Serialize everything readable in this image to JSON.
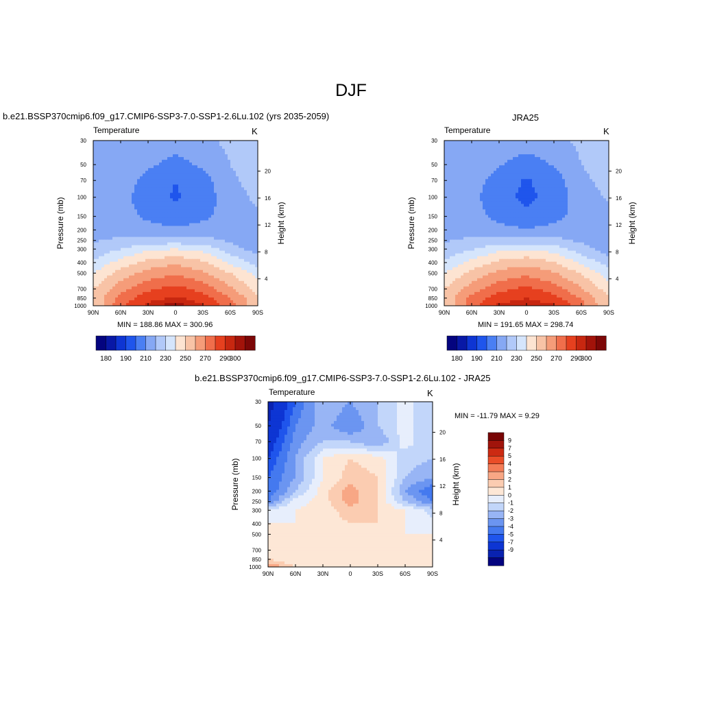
{
  "page": {
    "title": "DJF"
  },
  "panels": {
    "model": {
      "header": "b.e21.BSSP370cmip6.f09_g17.CMIP6-SSP3-7.0-SSP1-2.6Lu.102 (yrs 2035-2059)",
      "left_label": "Temperature",
      "right_label": "K",
      "stats": "MIN = 188.86  MAX = 300.96"
    },
    "obs": {
      "header": "JRA25",
      "left_label": "Temperature",
      "right_label": "K",
      "stats": "MIN = 191.65  MAX = 298.74"
    },
    "diff": {
      "header": "b.e21.BSSP370cmip6.f09_g17.CMIP6-SSP3-7.0-SSP1-2.6Lu.102 - JRA25",
      "left_label": "Temperature",
      "right_label": "K",
      "stats": "MIN = -11.79  MAX =   9.29"
    }
  },
  "colors": {
    "temp_scale": [
      "#04047f",
      "#0818a6",
      "#0e35d3",
      "#1f55ec",
      "#4a7ff3",
      "#86a8f4",
      "#b1c9f9",
      "#d5e5fc",
      "#fde4d2",
      "#f8c3a6",
      "#f59c79",
      "#f06e4b",
      "#e6401f",
      "#c72710",
      "#a2130a",
      "#7c0707"
    ],
    "diff_scale": [
      "#04047f",
      "#0922b0",
      "#0d35d3",
      "#1f55ec",
      "#4479ef",
      "#6b95f1",
      "#98b5f5",
      "#c2d6fa",
      "#e7eefc",
      "#fde7d6",
      "#fbccb1",
      "#f8a785",
      "#f47c57",
      "#ea4d28",
      "#cc2a12",
      "#a0140b",
      "#780505"
    ]
  },
  "chart_data": [
    {
      "type": "heatmap",
      "name": "model",
      "title": "b.e21.BSSP370cmip6.f09_g17.CMIP6-SSP3-7.0-SSP1-2.6Lu.102 (yrs 2035-2059)",
      "variable": "Temperature",
      "units": "K",
      "ylabel": "Pressure (mb)",
      "ylabel_right": "Height (km)",
      "x_tick_labels": [
        "90N",
        "60N",
        "30N",
        "0",
        "30S",
        "60S",
        "90S"
      ],
      "y_tick_labels": [
        "30",
        "50",
        "70",
        "100",
        "150",
        "200",
        "250",
        "300",
        "400",
        "500",
        "700",
        "850",
        "1000"
      ],
      "y_ticks": [
        30,
        50,
        70,
        100,
        150,
        200,
        250,
        300,
        400,
        500,
        700,
        850,
        1000
      ],
      "height_tick_labels": [
        "4",
        "8",
        "12",
        "16",
        "20"
      ],
      "height_ticks": [
        4,
        8,
        12,
        16,
        20
      ],
      "ylim": [
        1000,
        30
      ],
      "xlim": [
        90,
        -90
      ],
      "colorbar_labels": [
        "180",
        "190",
        "210",
        "230",
        "250",
        "270",
        "290",
        "300"
      ],
      "colorbar_levels": [
        180,
        185,
        190,
        200,
        210,
        220,
        230,
        240,
        250,
        260,
        270,
        280,
        290,
        295,
        300
      ],
      "min": 188.86,
      "max": 300.96,
      "profile_lat": [
        90,
        60,
        30,
        0,
        -30,
        -60,
        -90
      ],
      "profile_p": [
        30,
        50,
        70,
        100,
        150,
        200,
        250,
        300,
        400,
        500,
        700,
        850,
        1000
      ],
      "values": [
        [
          214,
          220,
          218,
          216,
          218,
          222,
          228
        ],
        [
          212,
          218,
          212,
          206,
          212,
          220,
          226
        ],
        [
          210,
          216,
          206,
          200,
          206,
          218,
          224
        ],
        [
          210,
          214,
          204,
          199,
          204,
          216,
          222
        ],
        [
          212,
          214,
          208,
          203,
          208,
          214,
          218
        ],
        [
          215,
          216,
          214,
          212,
          214,
          214,
          216
        ],
        [
          219,
          222,
          224,
          224,
          224,
          218,
          214
        ],
        [
          222,
          230,
          238,
          240,
          237,
          224,
          216
        ],
        [
          232,
          244,
          254,
          258,
          252,
          238,
          226
        ],
        [
          240,
          254,
          264,
          268,
          262,
          250,
          236
        ],
        [
          250,
          266,
          278,
          284,
          276,
          262,
          246
        ],
        [
          252,
          274,
          286,
          292,
          285,
          270,
          252
        ],
        [
          250,
          278,
          293,
          298,
          292,
          275,
          250
        ]
      ]
    },
    {
      "type": "heatmap",
      "name": "obs",
      "title": "JRA25",
      "variable": "Temperature",
      "units": "K",
      "ylabel": "Pressure (mb)",
      "ylabel_right": "Height (km)",
      "x_tick_labels": [
        "90N",
        "60N",
        "30N",
        "0",
        "30S",
        "60S",
        "90S"
      ],
      "y_tick_labels": [
        "30",
        "50",
        "70",
        "100",
        "150",
        "200",
        "250",
        "300",
        "400",
        "500",
        "700",
        "850",
        "1000"
      ],
      "y_ticks": [
        30,
        50,
        70,
        100,
        150,
        200,
        250,
        300,
        400,
        500,
        700,
        850,
        1000
      ],
      "height_tick_labels": [
        "4",
        "8",
        "12",
        "16",
        "20"
      ],
      "height_ticks": [
        4,
        8,
        12,
        16,
        20
      ],
      "ylim": [
        1000,
        30
      ],
      "xlim": [
        90,
        -90
      ],
      "colorbar_labels": [
        "180",
        "190",
        "210",
        "230",
        "250",
        "270",
        "290",
        "300"
      ],
      "colorbar_levels": [
        180,
        185,
        190,
        200,
        210,
        220,
        230,
        240,
        250,
        260,
        270,
        280,
        290,
        295,
        300
      ],
      "min": 191.65,
      "max": 298.74,
      "profile_lat": [
        90,
        60,
        30,
        0,
        -30,
        -60,
        -90
      ],
      "profile_p": [
        30,
        50,
        70,
        100,
        150,
        200,
        250,
        300,
        400,
        500,
        700,
        850,
        1000
      ],
      "values": [
        [
          214,
          219,
          217,
          215,
          217,
          222,
          227
        ],
        [
          212,
          217,
          211,
          205,
          211,
          220,
          225
        ],
        [
          210,
          215,
          205,
          199,
          205,
          218,
          223
        ],
        [
          210,
          213,
          203,
          198,
          203,
          216,
          221
        ],
        [
          212,
          214,
          207,
          202,
          207,
          214,
          218
        ],
        [
          215,
          216,
          213,
          211,
          213,
          214,
          216
        ],
        [
          219,
          222,
          223,
          223,
          223,
          218,
          213
        ],
        [
          222,
          229,
          237,
          239,
          236,
          224,
          215
        ],
        [
          232,
          243,
          253,
          257,
          251,
          238,
          225
        ],
        [
          240,
          253,
          263,
          267,
          261,
          249,
          235
        ],
        [
          250,
          265,
          277,
          283,
          275,
          261,
          245
        ],
        [
          252,
          273,
          285,
          290,
          284,
          269,
          251
        ],
        [
          250,
          277,
          292,
          296,
          291,
          274,
          249
        ]
      ]
    },
    {
      "type": "heatmap",
      "name": "diff",
      "title": "b.e21.BSSP370cmip6.f09_g17.CMIP6-SSP3-7.0-SSP1-2.6Lu.102 - JRA25",
      "variable": "Temperature",
      "units": "K",
      "ylabel": "Pressure (mb)",
      "ylabel_right": "Height (km)",
      "x_tick_labels": [
        "90N",
        "60N",
        "30N",
        "0",
        "30S",
        "60S",
        "90S"
      ],
      "y_tick_labels": [
        "30",
        "50",
        "70",
        "100",
        "150",
        "200",
        "250",
        "300",
        "400",
        "500",
        "700",
        "850",
        "1000"
      ],
      "y_ticks": [
        30,
        50,
        70,
        100,
        150,
        200,
        250,
        300,
        400,
        500,
        700,
        850,
        1000
      ],
      "height_tick_labels": [
        "4",
        "8",
        "12",
        "16",
        "20"
      ],
      "height_ticks": [
        4,
        8,
        12,
        16,
        20
      ],
      "ylim": [
        1000,
        30
      ],
      "xlim": [
        90,
        -90
      ],
      "colorbar_labels": [
        "9",
        "7",
        "5",
        "4",
        "3",
        "2",
        "1",
        "0",
        "-1",
        "-2",
        "-3",
        "-4",
        "-5",
        "-7",
        "-9"
      ],
      "colorbar_levels": [
        -9,
        -7,
        -5,
        -4,
        -3,
        -2,
        -1,
        0,
        1,
        2,
        3,
        4,
        5,
        7,
        9
      ],
      "min": -11.79,
      "max": 9.29,
      "profile_lat": [
        90,
        60,
        30,
        0,
        -30,
        -60,
        -90
      ],
      "profile_p": [
        30,
        50,
        70,
        100,
        150,
        200,
        250,
        300,
        400,
        500,
        700,
        850,
        1000
      ],
      "values": [
        [
          -8,
          -4,
          -1,
          -2,
          -1,
          0.5,
          -1
        ],
        [
          -7,
          -3,
          -1.5,
          -3,
          -1,
          0.5,
          -1
        ],
        [
          -6,
          -2.5,
          -1,
          -1,
          -2,
          0.5,
          -1
        ],
        [
          -5,
          -2,
          1,
          2,
          1.5,
          -0.5,
          -1
        ],
        [
          -4,
          -2,
          1,
          2.5,
          2,
          -1,
          -2
        ],
        [
          -4,
          -1,
          1.5,
          3.5,
          2,
          -2,
          -4
        ],
        [
          -3,
          0.5,
          1.5,
          3.5,
          2,
          -1,
          -3
        ],
        [
          0.5,
          1,
          1.5,
          2.5,
          2,
          1,
          -0.5
        ],
        [
          1,
          1,
          1.5,
          2,
          2,
          1,
          0.5
        ],
        [
          1,
          1,
          1.5,
          2,
          1.5,
          1,
          1
        ],
        [
          1.5,
          1,
          1,
          1.5,
          1,
          1,
          1
        ],
        [
          2,
          1,
          1,
          1,
          1,
          1,
          1
        ],
        [
          4,
          2,
          1,
          1,
          1,
          1,
          1
        ]
      ]
    }
  ]
}
